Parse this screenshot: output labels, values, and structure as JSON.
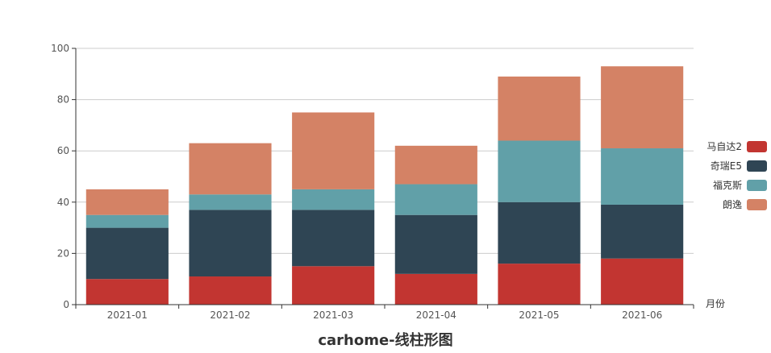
{
  "chart_data": {
    "type": "bar",
    "stacked": true,
    "title": "carhome-线柱形图",
    "xlabel": "月份",
    "ylabel": "",
    "ylim": [
      0,
      100
    ],
    "yticks": [
      0,
      20,
      40,
      60,
      80,
      100
    ],
    "grid": true,
    "legend_position": "right",
    "categories": [
      "2021-01",
      "2021-02",
      "2021-03",
      "2021-04",
      "2021-05",
      "2021-06"
    ],
    "series": [
      {
        "name": "马自达2",
        "color": "#c23531",
        "values": [
          10,
          11,
          15,
          12,
          16,
          18
        ]
      },
      {
        "name": "奇瑞E5",
        "color": "#2f4554",
        "values": [
          20,
          26,
          22,
          23,
          24,
          21
        ]
      },
      {
        "name": "福克斯",
        "color": "#61a0a8",
        "values": [
          5,
          6,
          8,
          12,
          24,
          22
        ]
      },
      {
        "name": "朗逸",
        "color": "#d48265",
        "values": [
          10,
          20,
          30,
          15,
          25,
          32
        ]
      }
    ]
  }
}
